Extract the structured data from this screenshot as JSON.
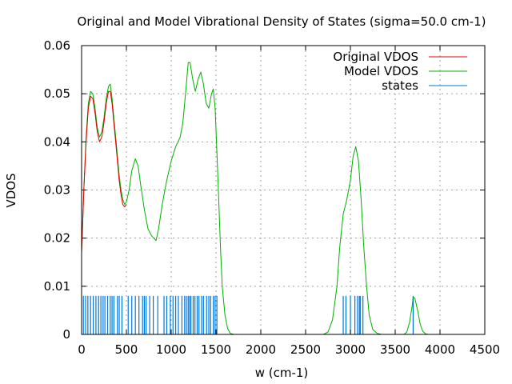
{
  "chart_data": {
    "type": "line",
    "title": "Original and Model Vibrational Density of States (sigma=50.0 cm-1)",
    "xlabel": "w (cm-1)",
    "ylabel": "VDOS",
    "xlim": [
      0,
      4500
    ],
    "ylim": [
      0,
      0.06
    ],
    "xticks": [
      "0",
      "500",
      "1000",
      "1500",
      "2000",
      "2500",
      "3000",
      "3500",
      "4000",
      "4500"
    ],
    "xtick_values": [
      0,
      500,
      1000,
      1500,
      2000,
      2500,
      3000,
      3500,
      4000,
      4500
    ],
    "yticks": [
      "0",
      "0.01",
      "0.02",
      "0.03",
      "0.04",
      "0.05",
      "0.06"
    ],
    "ytick_values": [
      0,
      0.01,
      0.02,
      0.03,
      0.04,
      0.05,
      0.06
    ],
    "grid": true,
    "legend_position": "top-right",
    "series": [
      {
        "name": "Original VDOS",
        "color": "#e00000",
        "x": [
          0,
          25,
          50,
          75,
          100,
          125,
          150,
          175,
          200,
          225,
          250,
          275,
          300,
          320,
          340,
          360,
          380,
          400,
          420,
          440,
          460,
          480,
          500
        ],
        "y": [
          0.017,
          0.03,
          0.04,
          0.047,
          0.0495,
          0.049,
          0.046,
          0.042,
          0.04,
          0.041,
          0.044,
          0.048,
          0.0505,
          0.0505,
          0.048,
          0.044,
          0.04,
          0.036,
          0.032,
          0.029,
          0.027,
          0.0265,
          0.027
        ]
      },
      {
        "name": "Model VDOS",
        "color": "#00b000",
        "x": [
          0,
          25,
          50,
          75,
          100,
          125,
          150,
          175,
          200,
          225,
          250,
          275,
          300,
          320,
          340,
          360,
          380,
          400,
          420,
          440,
          460,
          480,
          500,
          530,
          560,
          600,
          630,
          660,
          700,
          740,
          780,
          830,
          860,
          900,
          950,
          1000,
          1050,
          1100,
          1130,
          1160,
          1190,
          1210,
          1240,
          1270,
          1300,
          1330,
          1360,
          1390,
          1420,
          1450,
          1470,
          1490,
          1510,
          1530,
          1550,
          1570,
          1600,
          1630,
          1660,
          1700,
          2700,
          2750,
          2800,
          2850,
          2880,
          2920,
          2960,
          3000,
          3030,
          3060,
          3090,
          3120,
          3150,
          3180,
          3210,
          3250,
          3300,
          3350,
          3600,
          3630,
          3660,
          3690,
          3700,
          3720,
          3750,
          3780,
          3810,
          3840,
          3870,
          4500
        ],
        "y": [
          0.017,
          0.03,
          0.041,
          0.048,
          0.0505,
          0.05,
          0.047,
          0.043,
          0.041,
          0.042,
          0.045,
          0.049,
          0.0515,
          0.052,
          0.049,
          0.045,
          0.041,
          0.037,
          0.033,
          0.03,
          0.028,
          0.027,
          0.0275,
          0.03,
          0.034,
          0.0365,
          0.035,
          0.031,
          0.026,
          0.022,
          0.0205,
          0.0195,
          0.022,
          0.027,
          0.032,
          0.036,
          0.039,
          0.041,
          0.044,
          0.05,
          0.0565,
          0.0565,
          0.053,
          0.0505,
          0.053,
          0.0545,
          0.052,
          0.048,
          0.047,
          0.05,
          0.051,
          0.047,
          0.038,
          0.028,
          0.018,
          0.01,
          0.004,
          0.0012,
          0.0002,
          0,
          0,
          0.0005,
          0.003,
          0.01,
          0.018,
          0.025,
          0.028,
          0.032,
          0.037,
          0.039,
          0.036,
          0.028,
          0.018,
          0.01,
          0.004,
          0.001,
          0.0002,
          0,
          0,
          0.0005,
          0.0025,
          0.006,
          0.0078,
          0.0075,
          0.005,
          0.002,
          0.0006,
          0.0001,
          0,
          0
        ]
      },
      {
        "name": "states",
        "color": "#0078e0",
        "type": "impulses",
        "height": 0.008,
        "x": [
          20,
          45,
          70,
          100,
          130,
          160,
          190,
          215,
          240,
          260,
          290,
          320,
          340,
          360,
          400,
          420,
          450,
          520,
          560,
          600,
          640,
          680,
          700,
          720,
          760,
          800,
          850,
          920,
          950,
          990,
          1020,
          1050,
          1080,
          1120,
          1150,
          1170,
          1190,
          1205,
          1220,
          1245,
          1265,
          1290,
          1310,
          1340,
          1360,
          1395,
          1420,
          1440,
          1470,
          1490,
          1510,
          2920,
          2950,
          3000,
          3050,
          3080,
          3100,
          3110,
          3140,
          3700
        ]
      }
    ]
  }
}
